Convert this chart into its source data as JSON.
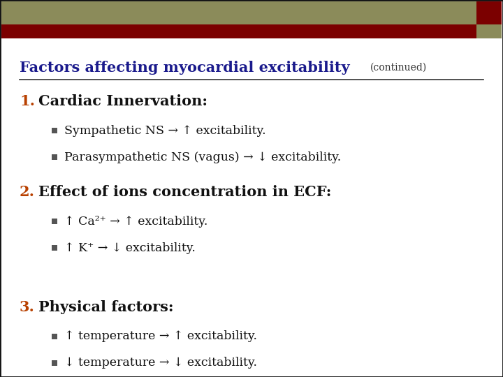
{
  "bg_color": "#ffffff",
  "header_olive_color": "#8B8B5A",
  "header_red_color": "#7B0000",
  "border_color": "#111111",
  "title_text": "Factors affecting myocardial excitability",
  "title_continued": "(continued)",
  "title_color": "#1a1a8c",
  "title_fontsize": 15,
  "continued_fontsize": 10,
  "number_color": "#b84000",
  "number_fontsize": 15,
  "heading_fontsize": 15,
  "bullet_fontsize": 12.5,
  "line_color": "#333333",
  "sections": [
    {
      "number": "1.",
      "heading": "Cardiac Innervation:",
      "bullets": [
        "Sympathetic NS → ↑ excitability.",
        "Parasympathetic NS (vagus) → ↓ excitability."
      ]
    },
    {
      "number": "2.",
      "heading": "Effect of ions concentration in ECF:",
      "bullets": [
        "↑ Ca²⁺ → ↑ excitability.",
        "↑ K⁺ → ↓ excitability."
      ]
    },
    {
      "number": "3.",
      "heading": "Physical factors:",
      "bullets": [
        "↑ temperature → ↑ excitability.",
        "↓ temperature → ↓ excitability."
      ]
    }
  ]
}
